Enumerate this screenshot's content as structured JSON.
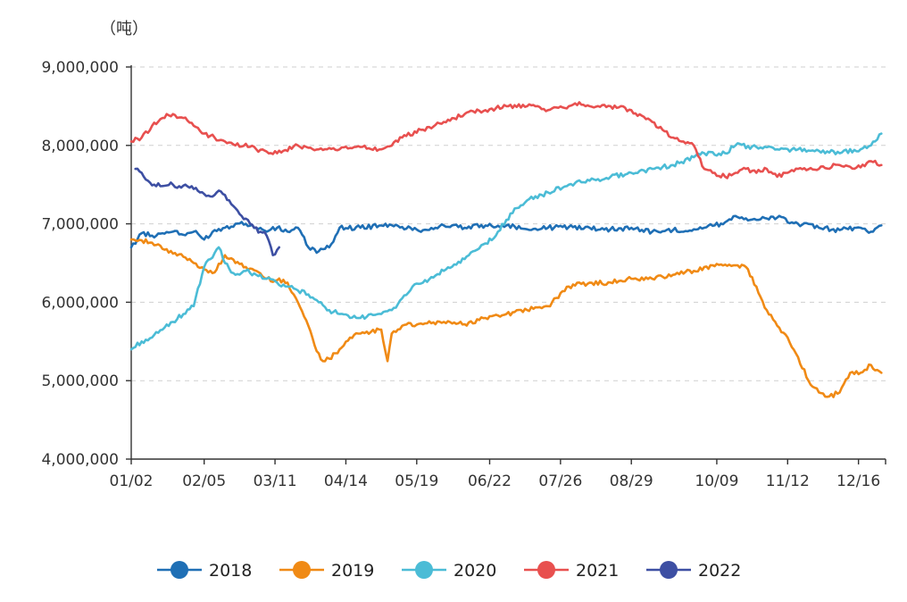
{
  "chart_data": {
    "type": "line",
    "unit_label": "（吨）",
    "ylim": [
      4000000,
      9000000
    ],
    "yticks": [
      4000000,
      5000000,
      6000000,
      7000000,
      8000000,
      9000000
    ],
    "ytick_labels": [
      "4,000,000",
      "5,000,000",
      "6,000,000",
      "7,000,000",
      "8,000,000",
      "9,000,000"
    ],
    "x_day_range": [
      0,
      362
    ],
    "xticks": [
      0,
      35,
      69,
      103,
      137,
      172,
      206,
      240,
      281,
      315,
      349
    ],
    "xtick_labels": [
      "01/02",
      "02/05",
      "03/11",
      "04/14",
      "05/19",
      "06/22",
      "07/26",
      "08/29",
      "10/09",
      "11/12",
      "12/16"
    ],
    "grid": true,
    "legend_position": "bottom",
    "series": [
      {
        "name": "2018",
        "color": "#1f6fb5",
        "x": [
          0,
          5,
          10,
          15,
          20,
          25,
          30,
          35,
          40,
          45,
          50,
          55,
          60,
          65,
          70,
          75,
          80,
          85,
          90,
          95,
          100,
          110,
          120,
          130,
          140,
          150,
          160,
          170,
          180,
          190,
          200,
          210,
          220,
          230,
          240,
          250,
          260,
          270,
          275,
          280,
          285,
          290,
          300,
          310,
          320,
          330,
          340,
          350,
          355,
          360
        ],
        "values": [
          6700000,
          6880000,
          6850000,
          6880000,
          6900000,
          6860000,
          6900000,
          6800000,
          6920000,
          6950000,
          7000000,
          7000000,
          6950000,
          6900000,
          6950000,
          6900000,
          6950000,
          6700000,
          6650000,
          6700000,
          6950000,
          6950000,
          6980000,
          6960000,
          6920000,
          6980000,
          6950000,
          6980000,
          6980000,
          6930000,
          6950000,
          6960000,
          6950000,
          6930000,
          6950000,
          6900000,
          6920000,
          6930000,
          6950000,
          6980000,
          7020000,
          7100000,
          7050000,
          7080000,
          7000000,
          6950000,
          6920000,
          6950000,
          6900000,
          6980000
        ]
      },
      {
        "name": "2019",
        "color": "#f08a15",
        "x": [
          0,
          5,
          10,
          15,
          20,
          25,
          30,
          35,
          40,
          45,
          50,
          55,
          60,
          65,
          70,
          75,
          80,
          85,
          88,
          92,
          95,
          100,
          105,
          110,
          115,
          120,
          123,
          125,
          130,
          140,
          150,
          160,
          170,
          180,
          190,
          200,
          210,
          220,
          230,
          240,
          250,
          260,
          270,
          275,
          280,
          285,
          290,
          295,
          300,
          305,
          310,
          315,
          320,
          325,
          330,
          335,
          340,
          345,
          350,
          355,
          360
        ],
        "values": [
          6800000,
          6790000,
          6760000,
          6680000,
          6620000,
          6580000,
          6500000,
          6420000,
          6380000,
          6600000,
          6500000,
          6450000,
          6400000,
          6300000,
          6280000,
          6250000,
          6000000,
          5700000,
          5450000,
          5250000,
          5280000,
          5400000,
          5550000,
          5600000,
          5620000,
          5650000,
          5250000,
          5600000,
          5700000,
          5720000,
          5750000,
          5720000,
          5800000,
          5850000,
          5900000,
          5950000,
          6200000,
          6250000,
          6250000,
          6300000,
          6300000,
          6350000,
          6400000,
          6450000,
          6460000,
          6480000,
          6470000,
          6450000,
          6200000,
          5900000,
          5700000,
          5550000,
          5300000,
          5000000,
          4850000,
          4800000,
          4850000,
          5100000,
          5100000,
          5200000,
          5100000
        ]
      },
      {
        "name": "2020",
        "color": "#4bbcd6",
        "x": [
          0,
          5,
          10,
          15,
          20,
          25,
          30,
          35,
          38,
          42,
          45,
          50,
          55,
          60,
          65,
          70,
          75,
          80,
          85,
          90,
          95,
          100,
          105,
          110,
          115,
          120,
          125,
          130,
          135,
          140,
          150,
          160,
          170,
          175,
          180,
          185,
          190,
          200,
          210,
          220,
          230,
          240,
          250,
          260,
          270,
          275,
          280,
          285,
          290,
          300,
          310,
          320,
          330,
          340,
          350,
          355,
          360
        ],
        "values": [
          5400000,
          5500000,
          5550000,
          5650000,
          5750000,
          5850000,
          5950000,
          6450000,
          6550000,
          6700000,
          6500000,
          6350000,
          6400000,
          6350000,
          6300000,
          6250000,
          6200000,
          6150000,
          6100000,
          6000000,
          5900000,
          5850000,
          5800000,
          5800000,
          5850000,
          5850000,
          5900000,
          6050000,
          6200000,
          6250000,
          6400000,
          6550000,
          6750000,
          6850000,
          7050000,
          7200000,
          7300000,
          7400000,
          7500000,
          7550000,
          7600000,
          7650000,
          7700000,
          7750000,
          7850000,
          7900000,
          7880000,
          7900000,
          8000000,
          7980000,
          7950000,
          7950000,
          7930000,
          7900000,
          7950000,
          8000000,
          8150000
        ]
      },
      {
        "name": "2021",
        "color": "#e8504f",
        "x": [
          0,
          5,
          10,
          15,
          20,
          25,
          30,
          35,
          40,
          45,
          50,
          55,
          60,
          70,
          80,
          90,
          100,
          110,
          120,
          130,
          140,
          150,
          160,
          170,
          180,
          190,
          200,
          210,
          215,
          220,
          230,
          240,
          250,
          260,
          265,
          270,
          275,
          280,
          285,
          290,
          295,
          300,
          305,
          310,
          315,
          320,
          330,
          340,
          350,
          355,
          360
        ],
        "values": [
          8050000,
          8100000,
          8250000,
          8350000,
          8400000,
          8350000,
          8250000,
          8150000,
          8100000,
          8050000,
          8000000,
          8020000,
          7950000,
          7900000,
          8000000,
          7950000,
          7950000,
          7980000,
          7950000,
          8100000,
          8200000,
          8300000,
          8400000,
          8450000,
          8500000,
          8500000,
          8450000,
          8500000,
          8550000,
          8500000,
          8500000,
          8450000,
          8300000,
          8100000,
          8050000,
          8000000,
          7700000,
          7650000,
          7600000,
          7650000,
          7700000,
          7650000,
          7700000,
          7600000,
          7650000,
          7700000,
          7700000,
          7750000,
          7720000,
          7800000,
          7750000
        ]
      },
      {
        "name": "2022",
        "color": "#3d4fa3",
        "x": [
          2,
          5,
          8,
          11,
          14,
          17,
          20,
          23,
          26,
          29,
          32,
          35,
          38,
          41,
          44,
          47,
          50,
          53,
          56,
          59,
          62,
          65,
          68,
          71
        ],
        "values": [
          7700000,
          7650000,
          7550000,
          7500000,
          7480000,
          7490000,
          7500000,
          7480000,
          7500000,
          7480000,
          7420000,
          7380000,
          7350000,
          7400000,
          7380000,
          7300000,
          7200000,
          7100000,
          7050000,
          6950000,
          6900000,
          6850000,
          6600000,
          6700000
        ]
      }
    ]
  }
}
